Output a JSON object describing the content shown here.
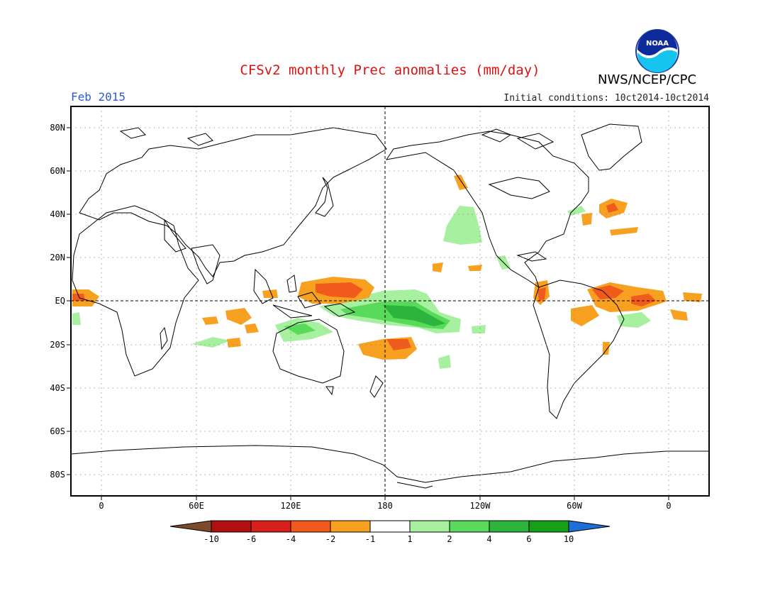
{
  "header": {
    "title": "CFSv2 monthly Prec anomalies (mm/day)",
    "valid_month": "Feb 2015",
    "init_conditions": "Initial conditions: 10ct2014-10ct2014",
    "agency": "NWS/NCEP/CPC",
    "logo_text": "NOAA"
  },
  "axes": {
    "lat_labels": [
      "80N",
      "60N",
      "40N",
      "20N",
      "EQ",
      "20S",
      "40S",
      "60S",
      "80S"
    ],
    "lon_labels": [
      "0",
      "60E",
      "120E",
      "180",
      "120W",
      "60W",
      "0"
    ]
  },
  "legend": {
    "tick_labels": [
      "-10",
      "-6",
      "-4",
      "-2",
      "-1",
      "1",
      "2",
      "4",
      "6",
      "10"
    ],
    "colors": [
      "#7a4a2a",
      "#b01010",
      "#d8201a",
      "#f05a1c",
      "#f8a020",
      "#ffffff",
      "#a6f0a0",
      "#5ada5a",
      "#2cb43c",
      "#17a017",
      "#1e6ed7"
    ]
  },
  "colors": {
    "dry_light": "#f8a020",
    "dry_mid": "#f05a1c",
    "wet_light": "#a6f0a0",
    "wet_mid": "#5ada5a",
    "wet_dark": "#2cb43c"
  }
}
